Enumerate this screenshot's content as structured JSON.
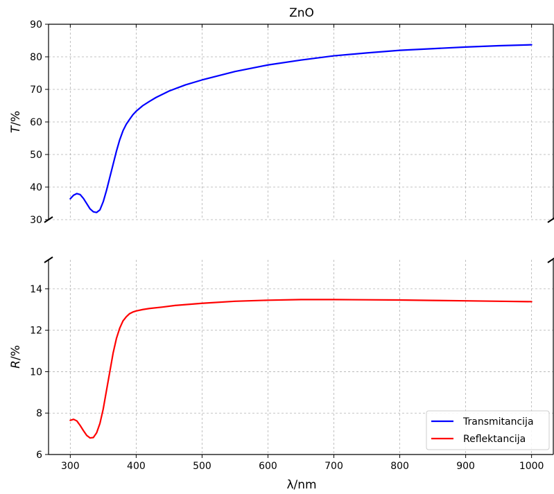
{
  "chart_data": {
    "type": "line",
    "title": "ZnO",
    "xlabel": "λ/nm",
    "xlim": [
      267,
      1033
    ],
    "xticks": [
      300,
      400,
      500,
      600,
      700,
      800,
      900,
      1000
    ],
    "grid": true,
    "legend_position": "bottom-right",
    "broken_y_axis": true,
    "panels": [
      {
        "id": "top",
        "ylabel_italic": "T",
        "ylabel_rest": "/%",
        "ylim": [
          30,
          90
        ],
        "yticks": [
          30,
          40,
          50,
          60,
          70,
          80,
          90
        ]
      },
      {
        "id": "bottom",
        "ylabel_italic": "R",
        "ylabel_rest": "/%",
        "ylim": [
          6,
          15.4
        ],
        "yticks": [
          6,
          8,
          10,
          12,
          14
        ]
      }
    ],
    "series": [
      {
        "name": "Transmitancija",
        "panel": "top",
        "color": "#0000ff",
        "x": [
          300,
          305,
          310,
          315,
          320,
          325,
          330,
          335,
          340,
          345,
          350,
          355,
          360,
          365,
          370,
          375,
          380,
          385,
          390,
          395,
          400,
          410,
          420,
          430,
          450,
          475,
          500,
          550,
          600,
          650,
          700,
          750,
          800,
          850,
          900,
          950,
          1000
        ],
        "y": [
          36.4,
          37.5,
          38.0,
          37.7,
          36.5,
          34.9,
          33.3,
          32.4,
          32.2,
          33.0,
          35.5,
          39.0,
          43.0,
          47.0,
          51.0,
          54.5,
          57.3,
          59.3,
          60.8,
          62.2,
          63.3,
          65.0,
          66.3,
          67.5,
          69.5,
          71.4,
          72.9,
          75.5,
          77.5,
          79.0,
          80.3,
          81.2,
          82.0,
          82.5,
          83.0,
          83.4,
          83.7
        ]
      },
      {
        "name": "Reflektancija",
        "panel": "bottom",
        "color": "#ff0000",
        "x": [
          300,
          305,
          310,
          315,
          320,
          325,
          330,
          335,
          340,
          345,
          350,
          355,
          360,
          365,
          370,
          375,
          380,
          385,
          390,
          395,
          400,
          410,
          420,
          440,
          460,
          500,
          550,
          600,
          650,
          700,
          750,
          800,
          850,
          900,
          950,
          1000
        ],
        "y": [
          7.65,
          7.7,
          7.62,
          7.4,
          7.15,
          6.92,
          6.8,
          6.82,
          7.05,
          7.5,
          8.2,
          9.1,
          10.0,
          10.9,
          11.6,
          12.1,
          12.45,
          12.65,
          12.8,
          12.88,
          12.93,
          13.0,
          13.05,
          13.12,
          13.2,
          13.3,
          13.4,
          13.45,
          13.48,
          13.48,
          13.47,
          13.46,
          13.44,
          13.42,
          13.4,
          13.38
        ]
      }
    ]
  }
}
